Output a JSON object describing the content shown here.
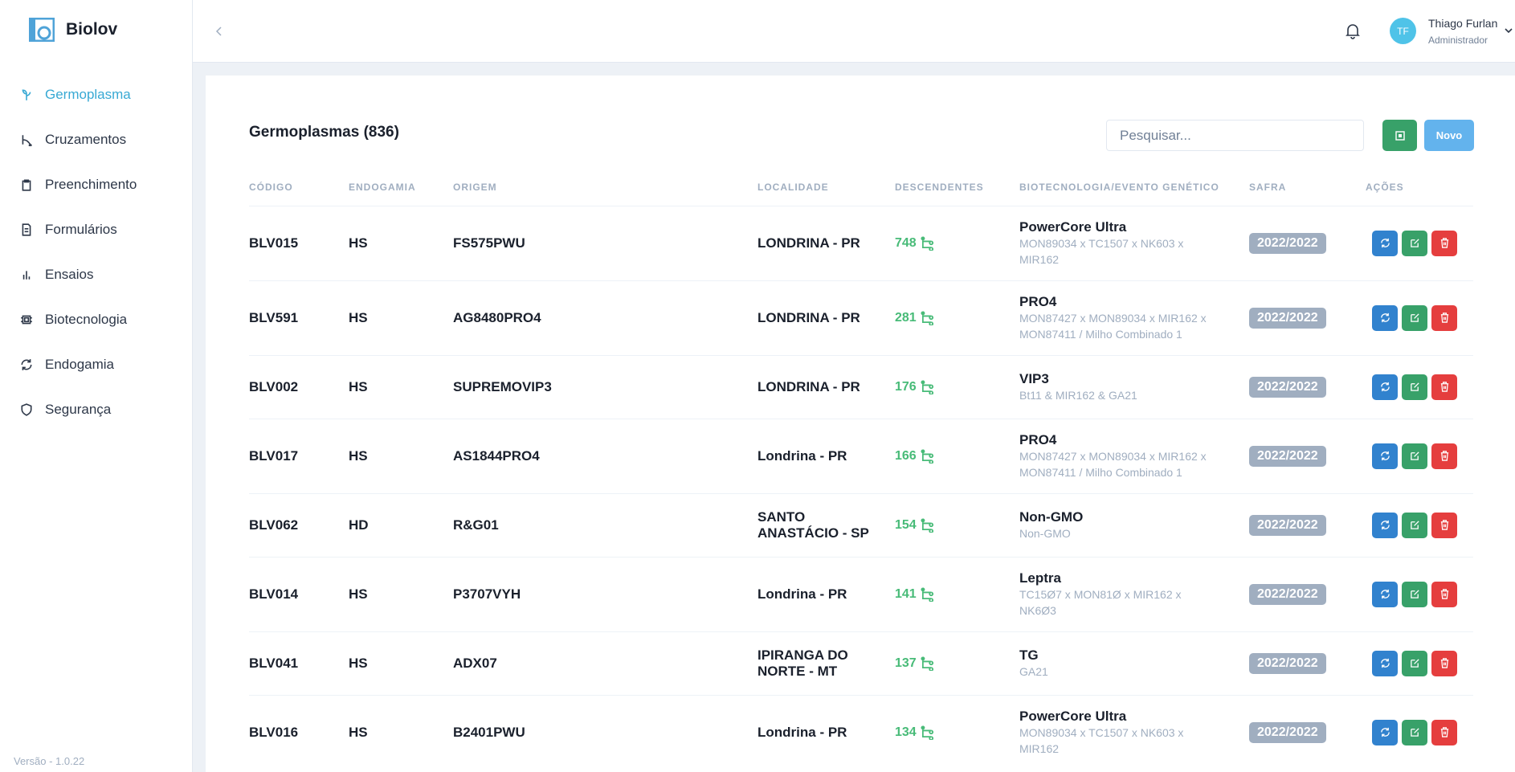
{
  "sidebar": {
    "brand": "Biolov",
    "nav": [
      "Germoplasma",
      "Cruzamentos",
      "Preenchimento",
      "Formulários",
      "Ensaios",
      "Biotecnologia",
      "Endogamia",
      "Segurança"
    ],
    "version": "Versão - 1.0.22"
  },
  "header": {
    "initials": "TF",
    "user_name": "Thiago Furlan",
    "user_role": "Administrador"
  },
  "page": {
    "title": "Germoplasmas (836)",
    "search_placeholder": "Pesquisar...",
    "new_button": "Novo"
  },
  "table": {
    "columns": [
      "CÓDIGO",
      "ENDOGAMIA",
      "ORIGEM",
      "LOCALIDADE",
      "DESCENDENTES",
      "BIOTECNOLOGIA/EVENTO GENÉTICO",
      "SAFRA",
      "AÇÕES"
    ],
    "rows": [
      {
        "code": "BLV015",
        "endogamia": "HS",
        "origem": "FS575PWU",
        "localidade": "LONDRINA - PR",
        "descendentes": 748,
        "biotecnologia": "PowerCore Ultra",
        "evento": "MON89034 x TC1507 x NK603 x MIR162",
        "safra": "2022/2022"
      },
      {
        "code": "BLV591",
        "endogamia": "HS",
        "origem": "AG8480PRO4",
        "localidade": "LONDRINA - PR",
        "descendentes": 281,
        "biotecnologia": "PRO4",
        "evento": "MON87427 x MON89034 x MIR162 x MON87411 / Milho Combinado 1",
        "safra": "2022/2022"
      },
      {
        "code": "BLV002",
        "endogamia": "HS",
        "origem": "SUPREMOVIP3",
        "localidade": "LONDRINA - PR",
        "descendentes": 176,
        "biotecnologia": "VIP3",
        "evento": "Bt11 & MIR162 & GA21",
        "safra": "2022/2022"
      },
      {
        "code": "BLV017",
        "endogamia": "HS",
        "origem": "AS1844PRO4",
        "localidade": "Londrina - PR",
        "descendentes": 166,
        "biotecnologia": "PRO4",
        "evento": "MON87427 x MON89034 x MIR162 x MON87411 / Milho Combinado 1",
        "safra": "2022/2022"
      },
      {
        "code": "BLV062",
        "endogamia": "HD",
        "origem": "R&G01",
        "localidade": "SANTO ANASTÁCIO - SP",
        "descendentes": 154,
        "biotecnologia": "Non-GMO",
        "evento": "Non-GMO",
        "safra": "2022/2022"
      },
      {
        "code": "BLV014",
        "endogamia": "HS",
        "origem": "P3707VYH",
        "localidade": "Londrina - PR",
        "descendentes": 141,
        "biotecnologia": "Leptra",
        "evento": "TC15Ø7 x MON81Ø x MIR162 x NK6Ø3",
        "safra": "2022/2022"
      },
      {
        "code": "BLV041",
        "endogamia": "HS",
        "origem": "ADX07",
        "localidade": "IPIRANGA DO NORTE - MT",
        "descendentes": 137,
        "biotecnologia": "TG",
        "evento": "GA21",
        "safra": "2022/2022"
      },
      {
        "code": "BLV016",
        "endogamia": "HS",
        "origem": "B2401PWU",
        "localidade": "Londrina - PR",
        "descendentes": 134,
        "biotecnologia": "PowerCore Ultra",
        "evento": "MON89034 x TC1507 x NK603 x MIR162",
        "safra": "2022/2022"
      }
    ]
  }
}
